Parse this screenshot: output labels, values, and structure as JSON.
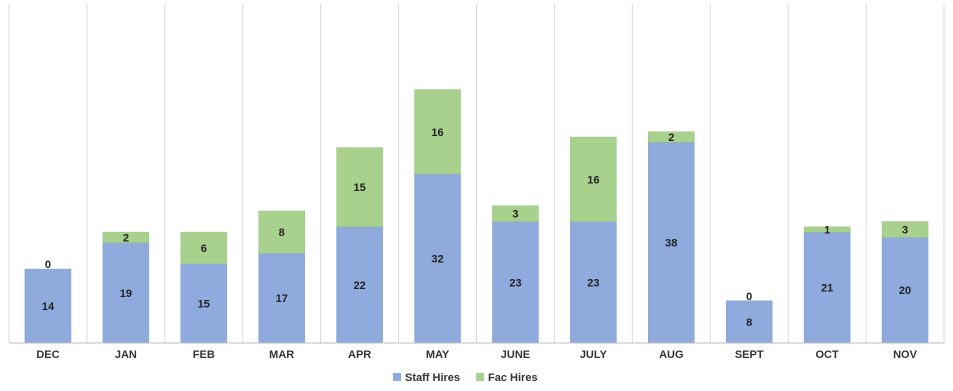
{
  "chart_data": {
    "type": "bar",
    "stacked": true,
    "categories": [
      "DEC",
      "JAN",
      "FEB",
      "MAR",
      "APR",
      "MAY",
      "JUNE",
      "JULY",
      "AUG",
      "SEPT",
      "OCT",
      "NOV"
    ],
    "series": [
      {
        "name": "Staff Hires",
        "color": "#8faadc",
        "values": [
          14,
          19,
          15,
          17,
          22,
          32,
          23,
          23,
          38,
          8,
          21,
          20
        ]
      },
      {
        "name": "Fac Hires",
        "color": "#a9d18e",
        "values": [
          0,
          2,
          6,
          8,
          15,
          16,
          3,
          16,
          2,
          0,
          1,
          3
        ]
      }
    ],
    "ylim": [
      0,
      50
    ],
    "grid": "vertical",
    "legend_position": "bottom"
  }
}
